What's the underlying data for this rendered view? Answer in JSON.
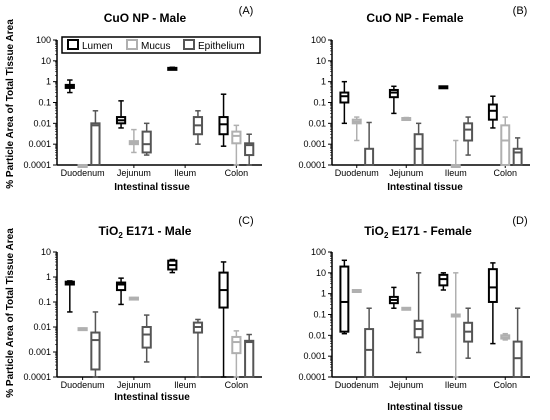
{
  "ylabel_top": "% Particle Area of Total Tissue Area",
  "ylabel_bottom": "% Particle Area of Total Tissue Area",
  "legend": {
    "lumen": "Lumen",
    "mucus": "Mucus",
    "epithelium": "Epithelium"
  },
  "colors": {
    "lumen": "#000000",
    "mucus": "#b0b0b0",
    "epithelium": "#555555"
  },
  "chart_data": [
    {
      "type": "box",
      "panel": "(A)",
      "title": "CuO NP - Male",
      "xlabel": "Intestinal tissue",
      "categories": [
        "Duodenum",
        "Jejunum",
        "Ileum",
        "Colon"
      ],
      "yscale": "log",
      "ylim": [
        0.0001,
        100
      ],
      "yticks": [
        "100",
        "10",
        "1",
        "0.1",
        "0.01",
        "0.001",
        "0.0001"
      ],
      "series": [
        {
          "name": "Lumen",
          "boxes": [
            {
              "min": 0.3,
              "q1": 0.5,
              "median": 0.6,
              "q3": 0.7,
              "max": 1.2
            },
            {
              "min": 0.006,
              "q1": 0.01,
              "median": 0.014,
              "q3": 0.02,
              "max": 0.12
            },
            {
              "min": 3.8,
              "q1": 4.0,
              "median": 4.3,
              "q3": 4.6,
              "max": 4.9
            },
            {
              "min": 0.0008,
              "q1": 0.003,
              "median": 0.009,
              "q3": 0.02,
              "max": 0.25
            }
          ]
        },
        {
          "name": "Mucus",
          "boxes": [
            {
              "min": 0.0001,
              "q1": 0.0001,
              "median": 0.0001,
              "q3": 0.0001,
              "max": 0.0001
            },
            {
              "min": 0.0004,
              "q1": 0.001,
              "median": 0.0012,
              "q3": 0.0014,
              "max": 0.005
            },
            null,
            {
              "min": 0.0001,
              "q1": 0.0011,
              "median": 0.0025,
              "q3": 0.004,
              "max": 0.008
            }
          ]
        },
        {
          "name": "Epithelium",
          "boxes": [
            {
              "min": 0.0001,
              "q1": 0.0001,
              "median": 0.008,
              "q3": 0.01,
              "max": 0.04
            },
            {
              "min": 0.0003,
              "q1": 0.0004,
              "median": 0.001,
              "q3": 0.004,
              "max": 0.01
            },
            {
              "min": 0.001,
              "q1": 0.003,
              "median": 0.008,
              "q3": 0.02,
              "max": 0.04
            },
            {
              "min": 0.0001,
              "q1": 0.0003,
              "median": 0.0009,
              "q3": 0.0011,
              "max": 0.003
            }
          ]
        }
      ]
    },
    {
      "type": "box",
      "panel": "(B)",
      "title": "CuO NP - Female",
      "xlabel": "Intestinal tissue",
      "categories": [
        "Duodenum",
        "Jejunum",
        "Ileum",
        "Colon"
      ],
      "yscale": "log",
      "ylim": [
        0.0001,
        100
      ],
      "yticks": [
        "100",
        "10",
        "1",
        "0.1",
        "0.01",
        "0.001",
        "0.0001"
      ],
      "series": [
        {
          "name": "Lumen",
          "boxes": [
            {
              "min": 0.01,
              "q1": 0.1,
              "median": 0.2,
              "q3": 0.3,
              "max": 1.0
            },
            {
              "min": 0.03,
              "q1": 0.18,
              "median": 0.3,
              "q3": 0.4,
              "max": 0.6
            },
            {
              "min": 0.5,
              "q1": 0.5,
              "median": 0.55,
              "q3": 0.6,
              "max": 0.6
            },
            {
              "min": 0.006,
              "q1": 0.015,
              "median": 0.04,
              "q3": 0.08,
              "max": 0.2
            }
          ]
        },
        {
          "name": "Mucus",
          "boxes": [
            {
              "min": 0.0015,
              "q1": 0.01,
              "median": 0.012,
              "q3": 0.015,
              "max": 0.02
            },
            {
              "min": 0.015,
              "q1": 0.016,
              "median": 0.017,
              "q3": 0.018,
              "max": 0.019
            },
            {
              "min": 0.0001,
              "q1": 0.0001,
              "median": 0.0001,
              "q3": 0.0001,
              "max": 0.0015
            },
            {
              "min": 0.0001,
              "q1": 0.0001,
              "median": 0.0015,
              "q3": 0.008,
              "max": 0.02
            }
          ]
        },
        {
          "name": "Epithelium",
          "boxes": [
            {
              "min": 0.0001,
              "q1": 0.0001,
              "median": 0.0001,
              "q3": 0.0006,
              "max": 0.011
            },
            {
              "min": 0.0001,
              "q1": 0.0001,
              "median": 0.0006,
              "q3": 0.003,
              "max": 0.01
            },
            {
              "min": 0.0003,
              "q1": 0.0015,
              "median": 0.005,
              "q3": 0.01,
              "max": 0.02
            },
            {
              "min": 0.0001,
              "q1": 0.0001,
              "median": 0.0004,
              "q3": 0.0006,
              "max": 0.002
            }
          ]
        }
      ]
    },
    {
      "type": "box",
      "panel": "(C)",
      "title": "TiO₂ E171 - Male",
      "xlabel": "Intestinal tissue",
      "categories": [
        "Duodenum",
        "Jejunum",
        "Ileum",
        "Colon"
      ],
      "yscale": "log",
      "ylim": [
        0.0001,
        10
      ],
      "yticks": [
        "10",
        "1",
        "0.1",
        "0.01",
        "0.001",
        "0.0001"
      ],
      "series": [
        {
          "name": "Lumen",
          "boxes": [
            {
              "min": 0.04,
              "q1": 0.5,
              "median": 0.6,
              "q3": 0.65,
              "max": 0.7
            },
            {
              "min": 0.08,
              "q1": 0.3,
              "median": 0.5,
              "q3": 0.6,
              "max": 0.9
            },
            {
              "min": 1.5,
              "q1": 2.0,
              "median": 3.0,
              "q3": 4.5,
              "max": 5.0
            },
            {
              "min": 0.0001,
              "q1": 0.06,
              "median": 0.3,
              "q3": 1.5,
              "max": 4.0
            }
          ]
        },
        {
          "name": "Mucus",
          "boxes": [
            {
              "min": 0.008,
              "q1": 0.008,
              "median": 0.008,
              "q3": 0.009,
              "max": 0.009
            },
            {
              "min": 0.13,
              "q1": 0.13,
              "median": 0.14,
              "q3": 0.15,
              "max": 0.15
            },
            null,
            {
              "min": 0.0001,
              "q1": 0.0009,
              "median": 0.0025,
              "q3": 0.004,
              "max": 0.007
            }
          ]
        },
        {
          "name": "Epithelium",
          "boxes": [
            {
              "min": 0.0001,
              "q1": 0.0002,
              "median": 0.003,
              "q3": 0.006,
              "max": 0.04
            },
            {
              "min": 0.0004,
              "q1": 0.0015,
              "median": 0.005,
              "q3": 0.01,
              "max": 0.03
            },
            {
              "min": 0.0001,
              "q1": 0.006,
              "median": 0.01,
              "q3": 0.015,
              "max": 0.02
            },
            {
              "min": 0.0001,
              "q1": 0.0001,
              "median": 0.0025,
              "q3": 0.0028,
              "max": 0.005
            }
          ]
        }
      ]
    },
    {
      "type": "box",
      "panel": "(D)",
      "title": "TiO₂ E171 - Female",
      "xlabel": "Intestinal tissue",
      "categories": [
        "Duodenum",
        "Jejunum",
        "Ileum",
        "Colon"
      ],
      "yscale": "log",
      "ylim": [
        0.0001,
        100
      ],
      "yticks": [
        "100",
        "10",
        "1",
        "0.1",
        "0.01",
        "0.001",
        "0.0001"
      ],
      "series": [
        {
          "name": "Lumen",
          "boxes": [
            {
              "min": 0.012,
              "q1": 0.015,
              "median": 0.4,
              "q3": 20,
              "max": 40
            },
            {
              "min": 0.2,
              "q1": 0.35,
              "median": 0.5,
              "q3": 0.7,
              "max": 2.0
            },
            {
              "min": 1.5,
              "q1": 2.5,
              "median": 5.0,
              "q3": 8.0,
              "max": 10
            },
            {
              "min": 0.004,
              "q1": 0.4,
              "median": 2.0,
              "q3": 15,
              "max": 30
            }
          ]
        },
        {
          "name": "Mucus",
          "boxes": [
            {
              "min": 1.3,
              "q1": 1.3,
              "median": 1.4,
              "q3": 1.5,
              "max": 1.5
            },
            {
              "min": 0.18,
              "q1": 0.18,
              "median": 0.2,
              "q3": 0.21,
              "max": 0.21
            },
            {
              "min": 0.0001,
              "q1": 0.08,
              "median": 0.09,
              "q3": 0.1,
              "max": 10
            },
            {
              "min": 0.006,
              "q1": 0.007,
              "median": 0.008,
              "q3": 0.01,
              "max": 0.012
            }
          ]
        },
        {
          "name": "Epithelium",
          "boxes": [
            {
              "min": 0.0001,
              "q1": 0.0001,
              "median": 0.002,
              "q3": 0.02,
              "max": 0.2
            },
            {
              "min": 0.0015,
              "q1": 0.008,
              "median": 0.02,
              "q3": 0.05,
              "max": 10
            },
            {
              "min": 0.0008,
              "q1": 0.005,
              "median": 0.015,
              "q3": 0.04,
              "max": 0.2
            },
            {
              "min": 0.0001,
              "q1": 0.0001,
              "median": 0.0008,
              "q3": 0.005,
              "max": 0.2
            }
          ]
        }
      ]
    }
  ]
}
